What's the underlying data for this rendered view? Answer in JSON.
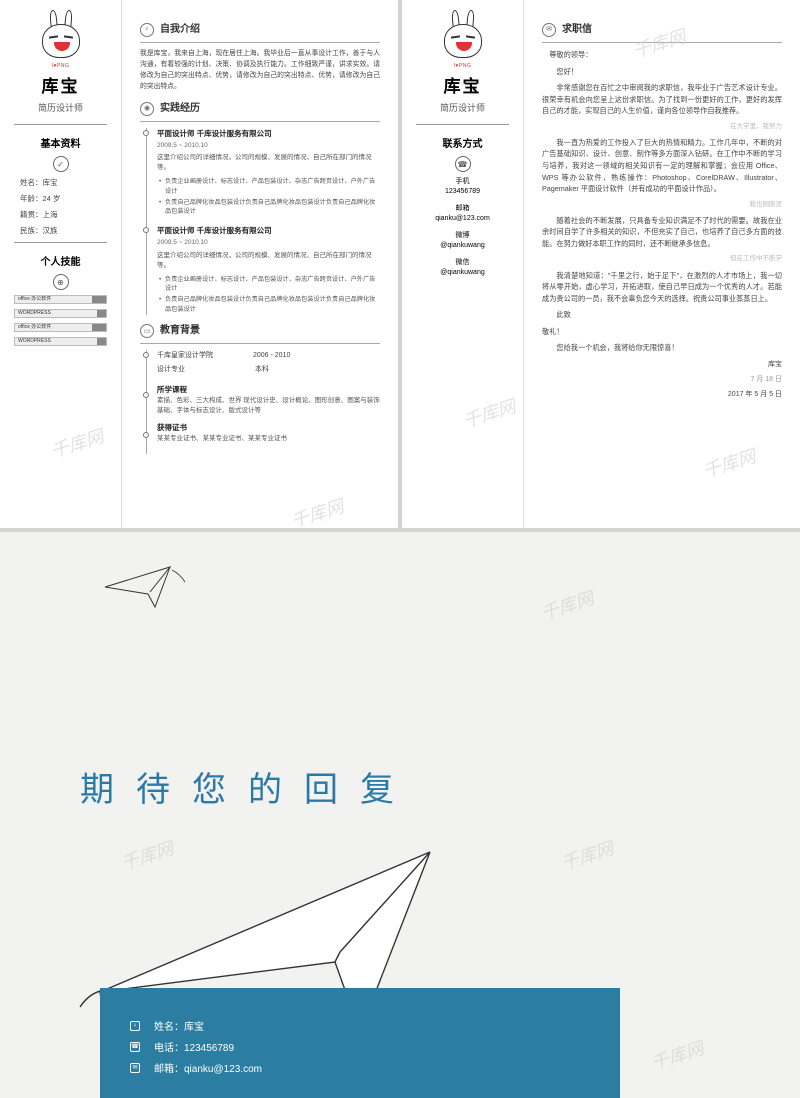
{
  "profile": {
    "name": "库宝",
    "title": "简历设计师",
    "bunny_tag": "I♥PNG"
  },
  "basic": {
    "heading": "基本资料",
    "name_label": "姓名：库宝",
    "age_label": "年龄：24 岁",
    "city_label": "籍贯：上海",
    "ethnic_label": "民族：汉族"
  },
  "contact": {
    "heading": "联系方式",
    "phone_label": "手机",
    "phone": "123456789",
    "email_label": "邮箱",
    "email": "qianku@123.com",
    "weibo_label": "微博",
    "weibo": "@qiankuwang",
    "wechat_label": "微信",
    "wechat": "@qiankuwang"
  },
  "skills": {
    "heading": "个人技能",
    "items": [
      {
        "label": "office 办公软件",
        "fill_pct": 15
      },
      {
        "label": "WORDPRESS",
        "fill_pct": 10
      },
      {
        "label": "office 办公软件",
        "fill_pct": 15
      },
      {
        "label": "WORDPRESS",
        "fill_pct": 10
      }
    ]
  },
  "intro": {
    "heading": "自我介绍",
    "text": "我是库宝，我来自上海，现在居住上海。我毕业后一直从事设计工作，善于与人沟通，有着较强的计划、决策、协调及执行能力。工作细致严谨，讲求实效。请修改为自己的突出特点、优势，请修改为自己的突出特点、优势，请修改为自己的突出特点。"
  },
  "experience": {
    "heading": "实践经历",
    "jobs": [
      {
        "title": "平面设计师   千库设计服务有限公司",
        "date": "2009.5 ~ 2010.10",
        "desc": "这里介绍公司的详细情况，公司的规模、发展的情况、自己所在部门的情况等。",
        "bullets": [
          "负责企业画册设计、标志设计、产品包装设计、杂志广告跨页设计、户外广告设计",
          "负责自己品牌化妆品包装设计负责自己品牌化妆品包装设计负责自己品牌化妆品包装设计"
        ]
      },
      {
        "title": "平面设计师   千库设计服务有限公司",
        "date": "2009.5 ~ 2010.10",
        "desc": "这里介绍公司的详细情况，公司的规模、发展的情况、自己所在部门的情况等。",
        "bullets": [
          "负责企业画册设计、标志设计、产品包装设计、杂志广告跨页设计、户外广告设计",
          "负责自己品牌化妆品包装设计负责自己品牌化妆品包装设计负责自己品牌化妆品包装设计"
        ]
      }
    ]
  },
  "education": {
    "heading": "教育背景",
    "school": "千库皇家设计学院",
    "years": "2006 - 2010",
    "major": "设计专业",
    "degree": "本科",
    "courses_label": "所学课程",
    "courses": "素描、色彩、三大构成、世界 现代设计史、设计概论、图形创意、图案与装饰基础、字体与标志设计、版式设计等",
    "cert_label": "获得证书",
    "certs": "某某专业证书、某某专业证书、某某专业证书"
  },
  "letter": {
    "heading": "求职信",
    "greeting": "尊敬的领导：",
    "hello": "您好！",
    "p1": "非常感谢您在百忙之中审阅我的求职信，我毕业于广告艺术设计专业。很荣幸有机会向您呈上这份求职信。为了找到一份更好的工作，更好的发挥自己的才能，实现自己的人生价值，谨向各位领导作自我推荐。",
    "note1": "在大学里，我努力",
    "p2": "我一直为热爱的工作投入了巨大的热情和精力。工作几年中，不断的对广告基础知识、设计、创意、制作等多方面深入钻研。在工作中不断的学习与培养，我对这一领域的相关知识有一定的理解和掌握；会应用 Office、WPS 等办公软件，熟练操作：Photoshop、CorelDRAW、Illustrator、Pagemaker 平面设计软件（并有成功的平面设计作品）。",
    "note2": "我也刚刚没",
    "p3": "随着社会的不断发展，只具备专业知识满足不了时代的需要。故我在业余时间自学了许多相关的知识，不但充实了自己，也培养了自己多方面的技能。在努力做好本职工作的同时，还不断继承多信息。",
    "note3": "但在工作中不断学",
    "p4": "我清楚地知道：\"千里之行，始于足下\"，在激烈的人才市场上，我一切将从零开始，虚心学习，开拓进取，使自己早日成为一个优秀的人才。若能成为贵公司的一员，我不会辜负您今天的选择。祝贵公司事业蒸蒸日上。",
    "closing1": "此致",
    "closing2": "敬礼！",
    "ask": "您给我一个机会，我将给你无限惊喜！",
    "sig_name": "库宝",
    "date1": "7 月 18 日",
    "date2": "2017 年 5 月 5 日"
  },
  "page3": {
    "headline": "期待您的回复",
    "name": "姓名：库宝",
    "phone": "电话：123456789",
    "email": "邮箱：qianku@123.com",
    "accent_color": "#2b7da2",
    "text_color": "#2a7aa8"
  },
  "watermark": "千库网"
}
